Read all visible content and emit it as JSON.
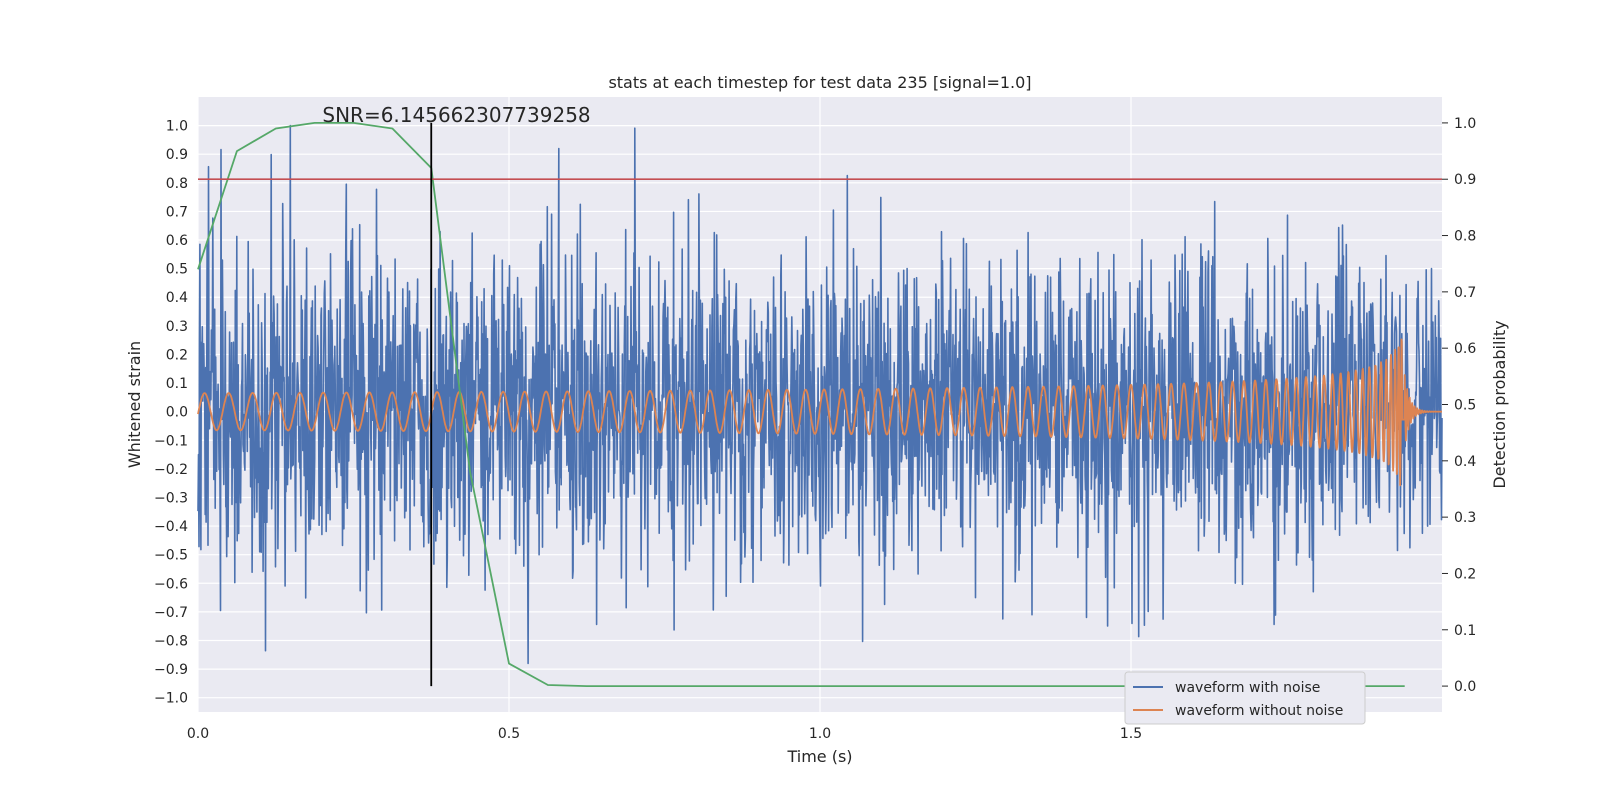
{
  "chart_data": {
    "type": "line",
    "title": "stats at each timestep for test data 235 [signal=1.0]",
    "xlabel": "Time (s)",
    "ylabel_left": "Whitened strain",
    "ylabel_right": "Detection probability",
    "xlim": [
      0.0,
      2.0
    ],
    "ylim_left": [
      -1.05,
      1.1
    ],
    "ylim_right": [
      -0.046,
      1.046
    ],
    "x_ticks": [
      "0.0",
      "0.5",
      "1.0",
      "1.5"
    ],
    "y_left_ticks": [
      "1.0",
      "0.9",
      "0.8",
      "0.7",
      "0.6",
      "0.5",
      "0.4",
      "0.3",
      "0.2",
      "0.1",
      "0.0",
      "−0.1",
      "−0.2",
      "−0.3",
      "−0.4",
      "−0.5",
      "−0.6",
      "−0.7",
      "−0.8",
      "−0.9",
      "−1.0"
    ],
    "y_right_ticks": [
      "1.0",
      "0.9",
      "0.8",
      "0.7",
      "0.6",
      "0.5",
      "0.4",
      "0.3",
      "0.2",
      "0.1",
      "0.0"
    ],
    "grid": true,
    "legend_position": "bottom-right",
    "annotation": "SNR=6.145662307739258",
    "series": [
      {
        "name": "waveform with noise",
        "axis": "left",
        "color": "#4c72b0",
        "kind": "noisy",
        "y_max": 1.0,
        "y_min": -0.93
      },
      {
        "name": "waveform without noise",
        "axis": "left",
        "color": "#dd8452",
        "kind": "chirp",
        "merger_time": 1.94,
        "peak_amplitude": 0.32
      },
      {
        "axis": "right",
        "color": "#55a868",
        "kind": "line",
        "x": [
          0.0,
          0.0625,
          0.125,
          0.1875,
          0.25,
          0.3125,
          0.375,
          0.4375,
          0.5,
          0.5625,
          0.625,
          0.75,
          1.0,
          1.25,
          1.5,
          1.75,
          1.94
        ],
        "y": [
          0.74,
          0.95,
          0.99,
          1.0,
          1.0,
          0.99,
          0.92,
          0.38,
          0.04,
          0.002,
          0.0,
          0.0,
          0.0,
          0.0,
          0.0,
          0.0,
          0.0
        ]
      }
    ],
    "threshold": {
      "axis": "right",
      "value": 0.9,
      "color": "#c44e52"
    },
    "marker_line": {
      "x": 0.375,
      "y_from": 0.0,
      "y_to": 1.0,
      "axis": "right",
      "color": "#000000"
    }
  }
}
